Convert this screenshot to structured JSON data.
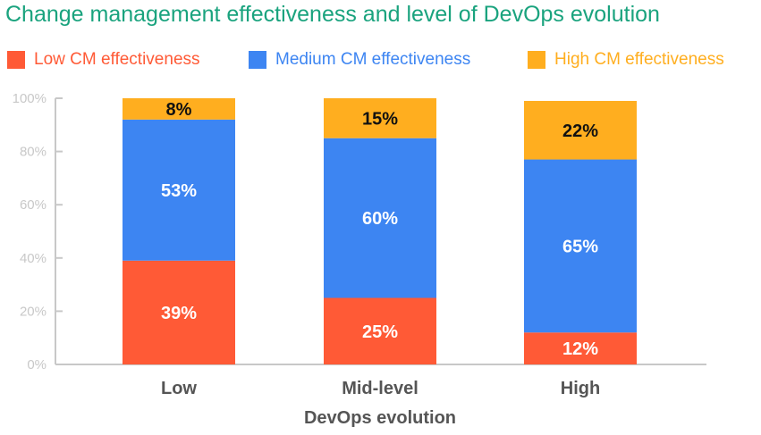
{
  "chart_data": {
    "type": "bar",
    "stacked": true,
    "title": "Change management effectiveness and level of DevOps evolution",
    "xlabel": "DevOps evolution",
    "ylabel": "",
    "ylim": [
      0,
      100
    ],
    "yticks": [
      "0%",
      "20%",
      "40%",
      "60%",
      "80%",
      "100%"
    ],
    "categories": [
      "Low",
      "Mid-level",
      "High"
    ],
    "series": [
      {
        "name": "Low CM effectiveness",
        "color": "#ff5a36",
        "values": [
          39,
          25,
          12
        ],
        "labels": [
          "39%",
          "25%",
          "12%"
        ]
      },
      {
        "name": "Medium CM effectiveness",
        "color": "#3d85f2",
        "values": [
          53,
          60,
          65
        ],
        "labels": [
          "53%",
          "60%",
          "65%"
        ]
      },
      {
        "name": "High CM effectiveness",
        "color": "#ffae1f",
        "values": [
          8,
          15,
          22
        ],
        "labels": [
          "8%",
          "15%",
          "22%"
        ]
      }
    ],
    "legend_position": "top",
    "grid": false
  }
}
